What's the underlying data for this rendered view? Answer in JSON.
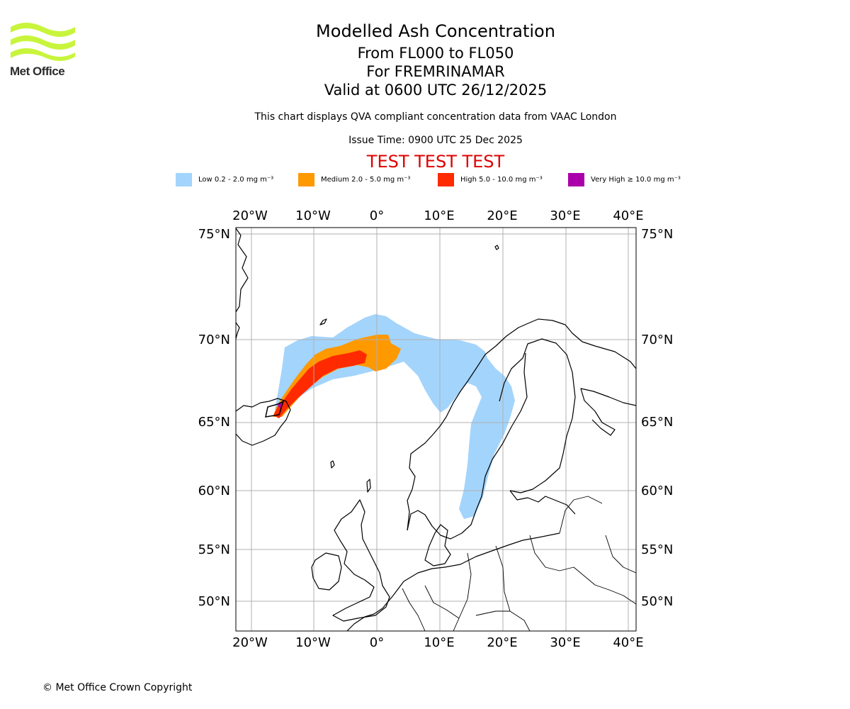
{
  "logo": {
    "name": "Met Office"
  },
  "header": {
    "title": "Modelled Ash Concentration",
    "levels": "From FL000 to FL050",
    "volcano": "For FREMRINAMAR",
    "valid": "Valid at 0600 UTC 26/12/2025",
    "note": "This chart displays QVA compliant concentration data from VAAC London",
    "issue": "Issue Time: 0900 UTC 25 Dec 2025",
    "test_banner": "TEST TEST TEST"
  },
  "legend": [
    {
      "label": "Low 0.2 - 2.0 mg m⁻³",
      "color": "#a3d4fc"
    },
    {
      "label": "Medium 2.0 - 5.0 mg m⁻³",
      "color": "#ff9900"
    },
    {
      "label": "High 5.0 - 10.0 mg m⁻³",
      "color": "#ff2a00"
    },
    {
      "label": "Very High  ≥  10.0 mg m⁻³",
      "color": "#aa00aa"
    }
  ],
  "map": {
    "lon_labels": [
      "20°W",
      "10°W",
      "0°",
      "10°E",
      "20°E",
      "30°E",
      "40°E"
    ],
    "lat_labels": [
      "75°N",
      "70°N",
      "65°N",
      "60°N",
      "55°N",
      "50°N"
    ],
    "gridline_color": "#b0b0b0"
  },
  "footer": {
    "copyright": "© Met Office Crown Copyright"
  }
}
